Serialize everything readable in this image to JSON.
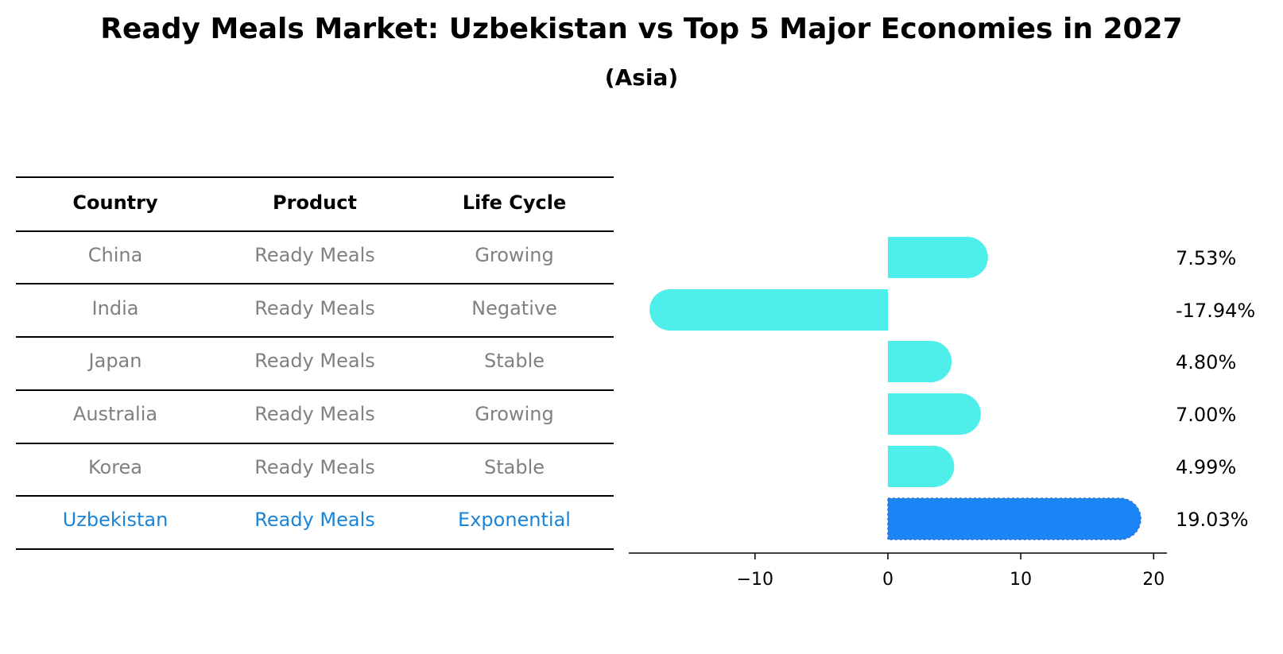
{
  "title": "Ready Meals Market: Uzbekistan vs Top 5 Major Economies in 2027",
  "subtitle": "(Asia)",
  "table": {
    "headers": [
      "Country",
      "Product",
      "Life Cycle"
    ],
    "rows": [
      [
        "China",
        "Ready Meals",
        "Growing"
      ],
      [
        "India",
        "Ready Meals",
        "Negative"
      ],
      [
        "Japan",
        "Ready Meals",
        "Stable"
      ],
      [
        "Australia",
        "Ready Meals",
        "Growing"
      ],
      [
        "Korea",
        "Ready Meals",
        "Stable"
      ],
      [
        "Uzbekistan",
        "Ready Meals",
        "Exponential"
      ]
    ],
    "highlight_row": 5
  },
  "colors": {
    "bar": "#4eeeea",
    "highlight_bar": "#1b85f5",
    "highlight_text": "#1a84d8",
    "body_text": "#808080"
  },
  "chart_data": {
    "type": "bar",
    "orientation": "horizontal",
    "categories": [
      "China",
      "India",
      "Japan",
      "Australia",
      "Korea",
      "Uzbekistan"
    ],
    "values": [
      7.53,
      -17.94,
      4.8,
      7.0,
      4.99,
      19.03
    ],
    "value_labels": [
      "7.53%",
      "-17.94%",
      "4.80%",
      "7.00%",
      "4.99%",
      "19.03%"
    ],
    "highlight_index": 5,
    "xlim": [
      -19.5,
      21
    ],
    "xticks": [
      -10,
      0,
      10,
      20
    ],
    "xtick_labels": [
      "−10",
      "0",
      "10",
      "20"
    ],
    "grid": false,
    "legend": "none"
  }
}
